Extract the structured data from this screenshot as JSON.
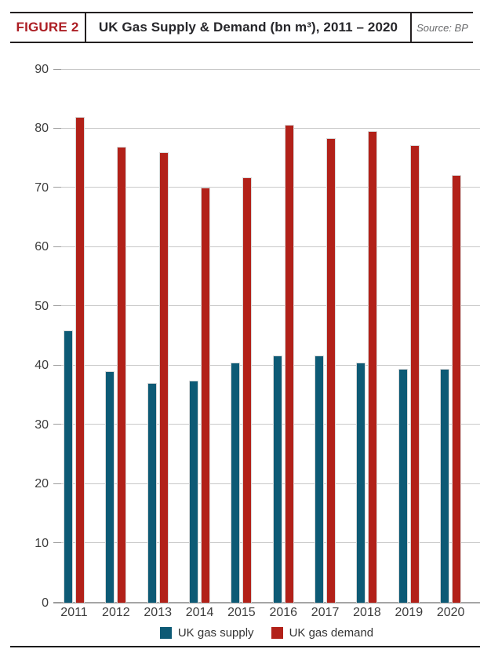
{
  "header": {
    "figure_label": "FIGURE 2",
    "title": "UK Gas Supply & Demand (bn m³), 2011 – 2020",
    "source": "Source: BP"
  },
  "colors": {
    "figure_label_accent": "#ac1e24",
    "supply": "#0d5a75",
    "demand": "#b22119",
    "gridline": "#c8c8c8"
  },
  "chart_data": {
    "type": "bar",
    "title": "UK Gas Supply & Demand (bn m³), 2011 – 2020",
    "categories": [
      "2011",
      "2012",
      "2013",
      "2014",
      "2015",
      "2016",
      "2017",
      "2018",
      "2019",
      "2020"
    ],
    "series": [
      {
        "name": "UK gas supply",
        "color": "#0d5a75",
        "values": [
          45.9,
          39.0,
          37.1,
          37.5,
          40.5,
          41.7,
          41.7,
          40.5,
          39.4,
          39.4
        ]
      },
      {
        "name": "UK gas demand",
        "color": "#b22119",
        "values": [
          81.9,
          76.9,
          76.0,
          70.0,
          71.8,
          80.6,
          78.4,
          79.5,
          77.2,
          72.2
        ]
      }
    ],
    "xlabel": "",
    "ylabel": "",
    "ylim": [
      0,
      90
    ],
    "yticks": [
      0,
      10,
      20,
      30,
      40,
      50,
      60,
      70,
      80,
      90
    ],
    "grid": true,
    "legend_position": "bottom"
  }
}
